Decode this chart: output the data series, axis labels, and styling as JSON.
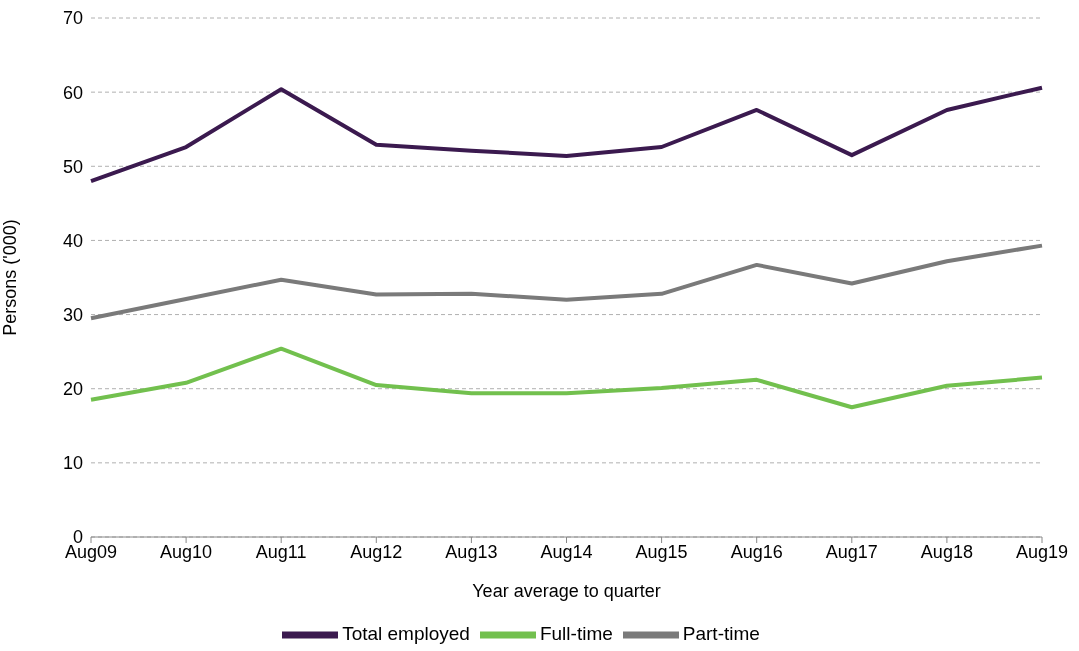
{
  "chart_data": {
    "type": "line",
    "xlabel": "Year average to quarter",
    "ylabel": "Persons ('000)",
    "categories": [
      "Aug09",
      "Aug10",
      "Aug11",
      "Aug12",
      "Aug13",
      "Aug14",
      "Aug15",
      "Aug16",
      "Aug17",
      "Aug18",
      "Aug19"
    ],
    "series": [
      {
        "name": "Total employed",
        "color": "#3b1a4f",
        "values": [
          48.0,
          52.6,
          60.4,
          52.9,
          52.1,
          51.4,
          52.6,
          57.6,
          51.5,
          57.6,
          60.6
        ]
      },
      {
        "name": "Full-time",
        "color": "#72c04e",
        "values": [
          18.5,
          20.8,
          25.4,
          20.5,
          19.4,
          19.4,
          20.1,
          21.2,
          17.5,
          20.4,
          21.5
        ]
      },
      {
        "name": "Part-time",
        "color": "#7a7a7a",
        "values": [
          29.5,
          32.1,
          34.7,
          32.7,
          32.8,
          32.0,
          32.8,
          36.7,
          34.2,
          37.2,
          39.3
        ]
      }
    ],
    "ylim": [
      0,
      70
    ],
    "yticks": [
      0,
      10,
      20,
      30,
      40,
      50,
      60,
      70
    ],
    "grid": "y",
    "legend": "bottom",
    "marker": "none",
    "line_style": "solid"
  }
}
